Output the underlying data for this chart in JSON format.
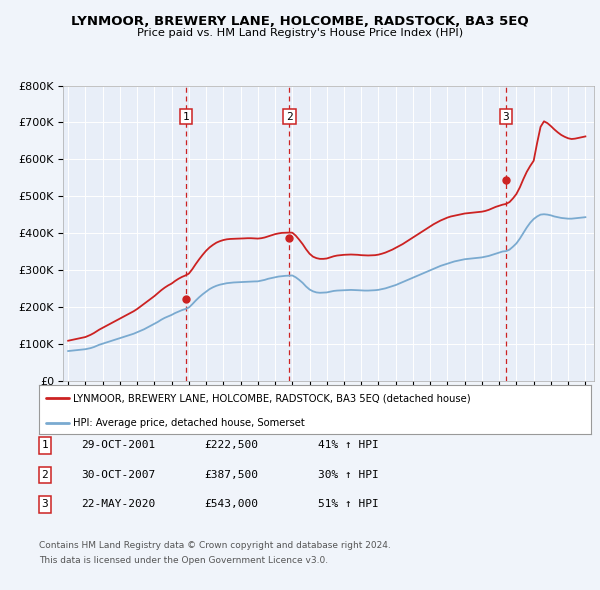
{
  "title": "LYNMOOR, BREWERY LANE, HOLCOMBE, RADSTOCK, BA3 5EQ",
  "subtitle": "Price paid vs. HM Land Registry's House Price Index (HPI)",
  "background_color": "#f0f4fa",
  "plot_bg_color": "#e8eef8",
  "line_color_hpi": "#7aaad0",
  "line_color_price": "#cc2222",
  "marker_color": "#cc2222",
  "sale_dates_float": [
    2001.83,
    2007.83,
    2020.38
  ],
  "sale_prices": [
    222500,
    387500,
    543000
  ],
  "sale_labels": [
    "1",
    "2",
    "3"
  ],
  "sale_info": [
    {
      "label": "1",
      "date": "29-OCT-2001",
      "price": "£222,500",
      "hpi": "41% ↑ HPI"
    },
    {
      "label": "2",
      "date": "30-OCT-2007",
      "price": "£387,500",
      "hpi": "30% ↑ HPI"
    },
    {
      "label": "3",
      "date": "22-MAY-2020",
      "price": "£543,000",
      "hpi": "51% ↑ HPI"
    }
  ],
  "legend_line1": "LYNMOOR, BREWERY LANE, HOLCOMBE, RADSTOCK, BA3 5EQ (detached house)",
  "legend_line2": "HPI: Average price, detached house, Somerset",
  "footer1": "Contains HM Land Registry data © Crown copyright and database right 2024.",
  "footer2": "This data is licensed under the Open Government Licence v3.0.",
  "ylim": [
    0,
    800000
  ],
  "yticks": [
    0,
    100000,
    200000,
    300000,
    400000,
    500000,
    600000,
    700000,
    800000
  ],
  "hpi_x": [
    1995.0,
    1995.1,
    1995.2,
    1995.3,
    1995.4,
    1995.5,
    1995.6,
    1995.7,
    1995.8,
    1995.9,
    1996.0,
    1996.1,
    1996.2,
    1996.3,
    1996.4,
    1996.5,
    1996.6,
    1996.7,
    1996.8,
    1996.9,
    1997.0,
    1997.2,
    1997.4,
    1997.6,
    1997.8,
    1998.0,
    1998.2,
    1998.4,
    1998.6,
    1998.8,
    1999.0,
    1999.2,
    1999.4,
    1999.6,
    1999.8,
    2000.0,
    2000.2,
    2000.4,
    2000.6,
    2000.8,
    2001.0,
    2001.2,
    2001.4,
    2001.6,
    2001.8,
    2002.0,
    2002.2,
    2002.4,
    2002.6,
    2002.8,
    2003.0,
    2003.2,
    2003.4,
    2003.6,
    2003.8,
    2004.0,
    2004.2,
    2004.4,
    2004.6,
    2004.8,
    2005.0,
    2005.2,
    2005.4,
    2005.6,
    2005.8,
    2006.0,
    2006.2,
    2006.4,
    2006.6,
    2006.8,
    2007.0,
    2007.2,
    2007.4,
    2007.6,
    2007.8,
    2008.0,
    2008.2,
    2008.4,
    2008.6,
    2008.8,
    2009.0,
    2009.2,
    2009.4,
    2009.6,
    2009.8,
    2010.0,
    2010.2,
    2010.4,
    2010.6,
    2010.8,
    2011.0,
    2011.2,
    2011.4,
    2011.6,
    2011.8,
    2012.0,
    2012.2,
    2012.4,
    2012.6,
    2012.8,
    2013.0,
    2013.2,
    2013.4,
    2013.6,
    2013.8,
    2014.0,
    2014.2,
    2014.4,
    2014.6,
    2014.8,
    2015.0,
    2015.2,
    2015.4,
    2015.6,
    2015.8,
    2016.0,
    2016.2,
    2016.4,
    2016.6,
    2016.8,
    2017.0,
    2017.2,
    2017.4,
    2017.6,
    2017.8,
    2018.0,
    2018.2,
    2018.4,
    2018.6,
    2018.8,
    2019.0,
    2019.2,
    2019.4,
    2019.6,
    2019.8,
    2020.0,
    2020.2,
    2020.4,
    2020.6,
    2020.8,
    2021.0,
    2021.2,
    2021.4,
    2021.6,
    2021.8,
    2022.0,
    2022.2,
    2022.4,
    2022.6,
    2022.8,
    2023.0,
    2023.2,
    2023.4,
    2023.6,
    2023.8,
    2024.0,
    2024.2,
    2024.4,
    2024.6,
    2024.8,
    2025.0
  ],
  "hpi_y": [
    80000,
    80500,
    81000,
    81500,
    82000,
    82500,
    83000,
    83500,
    84000,
    84500,
    85000,
    86000,
    87000,
    88000,
    89500,
    91000,
    93000,
    95000,
    97000,
    98500,
    100000,
    103000,
    106000,
    109000,
    112000,
    115000,
    118000,
    121000,
    124000,
    127000,
    131000,
    135000,
    139000,
    144000,
    149000,
    154000,
    159000,
    165000,
    170000,
    174000,
    178000,
    183000,
    187000,
    191000,
    194000,
    198000,
    207000,
    217000,
    226000,
    234000,
    241000,
    248000,
    253000,
    257000,
    260000,
    262000,
    264000,
    265000,
    266000,
    266500,
    267000,
    267500,
    268000,
    268500,
    268800,
    269000,
    271000,
    273000,
    276000,
    278000,
    280000,
    282000,
    283000,
    284000,
    284500,
    285000,
    280000,
    273000,
    265000,
    255000,
    247000,
    242000,
    239000,
    238000,
    238500,
    239000,
    241000,
    243000,
    244000,
    244500,
    245000,
    245500,
    245800,
    245500,
    245000,
    244500,
    244000,
    244000,
    244500,
    245000,
    246000,
    248000,
    250000,
    253000,
    256000,
    259000,
    263000,
    267000,
    271000,
    275000,
    279000,
    283000,
    287000,
    291000,
    295000,
    299000,
    303000,
    307000,
    311000,
    314000,
    317000,
    320000,
    323000,
    325000,
    327000,
    329000,
    330000,
    331000,
    332000,
    333000,
    334000,
    336000,
    338000,
    341000,
    344000,
    347000,
    350000,
    351000,
    355000,
    363000,
    372000,
    385000,
    400000,
    415000,
    428000,
    438000,
    445000,
    450000,
    451000,
    450000,
    448000,
    445000,
    443000,
    441000,
    440000,
    439000,
    439000,
    440000,
    441000,
    442000,
    443000
  ],
  "price_x": [
    1995.0,
    1995.1,
    1995.2,
    1995.3,
    1995.4,
    1995.5,
    1995.6,
    1995.7,
    1995.8,
    1995.9,
    1996.0,
    1996.1,
    1996.2,
    1996.3,
    1996.4,
    1996.5,
    1996.6,
    1996.7,
    1996.8,
    1996.9,
    1997.0,
    1997.2,
    1997.4,
    1997.6,
    1997.8,
    1998.0,
    1998.2,
    1998.4,
    1998.6,
    1998.8,
    1999.0,
    1999.2,
    1999.4,
    1999.6,
    1999.8,
    2000.0,
    2000.2,
    2000.4,
    2000.6,
    2000.8,
    2001.0,
    2001.2,
    2001.4,
    2001.6,
    2001.8,
    2002.0,
    2002.2,
    2002.4,
    2002.6,
    2002.8,
    2003.0,
    2003.2,
    2003.4,
    2003.6,
    2003.8,
    2004.0,
    2004.2,
    2004.4,
    2004.6,
    2004.8,
    2005.0,
    2005.2,
    2005.4,
    2005.6,
    2005.8,
    2006.0,
    2006.2,
    2006.4,
    2006.6,
    2006.8,
    2007.0,
    2007.2,
    2007.4,
    2007.6,
    2007.8,
    2008.0,
    2008.2,
    2008.4,
    2008.6,
    2008.8,
    2009.0,
    2009.2,
    2009.4,
    2009.6,
    2009.8,
    2010.0,
    2010.2,
    2010.4,
    2010.6,
    2010.8,
    2011.0,
    2011.2,
    2011.4,
    2011.6,
    2011.8,
    2012.0,
    2012.2,
    2012.4,
    2012.6,
    2012.8,
    2013.0,
    2013.2,
    2013.4,
    2013.6,
    2013.8,
    2014.0,
    2014.2,
    2014.4,
    2014.6,
    2014.8,
    2015.0,
    2015.2,
    2015.4,
    2015.6,
    2015.8,
    2016.0,
    2016.2,
    2016.4,
    2016.6,
    2016.8,
    2017.0,
    2017.2,
    2017.4,
    2017.6,
    2017.8,
    2018.0,
    2018.2,
    2018.4,
    2018.6,
    2018.8,
    2019.0,
    2019.2,
    2019.4,
    2019.6,
    2019.8,
    2020.0,
    2020.2,
    2020.4,
    2020.6,
    2020.8,
    2021.0,
    2021.2,
    2021.4,
    2021.6,
    2021.8,
    2022.0,
    2022.2,
    2022.4,
    2022.6,
    2022.8,
    2023.0,
    2023.2,
    2023.4,
    2023.6,
    2023.8,
    2024.0,
    2024.2,
    2024.4,
    2024.6,
    2024.8,
    2025.0
  ],
  "price_y": [
    108000,
    109000,
    110000,
    111000,
    112000,
    113000,
    114000,
    115000,
    116000,
    117000,
    118000,
    120000,
    122000,
    124000,
    126500,
    129000,
    132000,
    135000,
    138000,
    140500,
    143000,
    148000,
    153000,
    158000,
    163000,
    168000,
    173000,
    178000,
    183000,
    188000,
    194000,
    201000,
    208000,
    215000,
    222000,
    229000,
    237000,
    245000,
    252000,
    258000,
    263000,
    270000,
    276000,
    281000,
    285000,
    290000,
    302000,
    316000,
    329000,
    341000,
    352000,
    361000,
    368000,
    374000,
    378000,
    381000,
    383000,
    384000,
    384500,
    384800,
    385000,
    385500,
    386000,
    386000,
    385500,
    385000,
    386000,
    388000,
    391000,
    394000,
    397000,
    399000,
    400500,
    401000,
    401200,
    401000,
    393000,
    382000,
    370000,
    356000,
    344000,
    336000,
    332000,
    330000,
    330000,
    331000,
    334000,
    337000,
    339000,
    340000,
    341000,
    341500,
    341800,
    341500,
    341000,
    340000,
    339500,
    339200,
    339500,
    340000,
    341500,
    344000,
    347000,
    351000,
    355000,
    360000,
    365000,
    370000,
    376000,
    382000,
    388000,
    394000,
    400000,
    406000,
    412000,
    418000,
    424000,
    429000,
    434000,
    438000,
    442000,
    445000,
    447000,
    449000,
    451000,
    453000,
    454000,
    455000,
    456000,
    457000,
    458000,
    460000,
    463000,
    467000,
    471000,
    474000,
    477000,
    479000,
    484000,
    494000,
    506000,
    524000,
    546000,
    566000,
    582000,
    596000,
    644000,
    688000,
    703000,
    698000,
    690000,
    681000,
    673000,
    666000,
    661000,
    657000,
    655000,
    656000,
    658000,
    660000,
    662000
  ]
}
